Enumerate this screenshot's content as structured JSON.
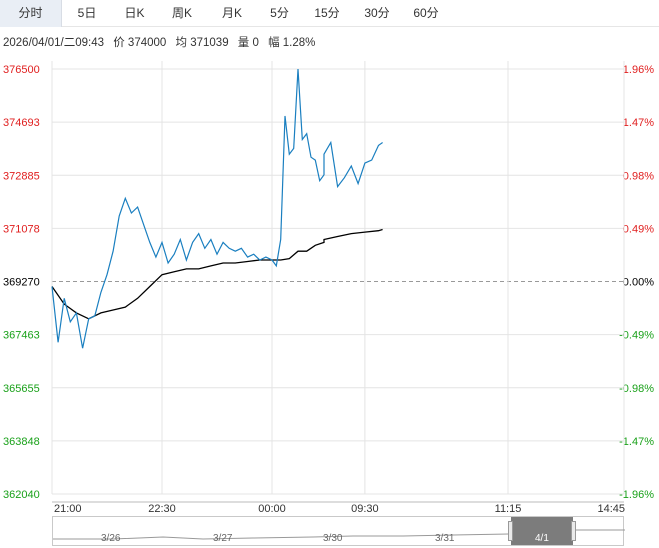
{
  "tabs": [
    {
      "label": "分时",
      "active": true
    },
    {
      "label": "5日",
      "active": false
    },
    {
      "label": "日K",
      "active": false
    },
    {
      "label": "周K",
      "active": false
    },
    {
      "label": "月K",
      "active": false
    },
    {
      "label": "5分",
      "active": false
    },
    {
      "label": "15分",
      "active": false
    },
    {
      "label": "30分",
      "active": false
    },
    {
      "label": "60分",
      "active": false
    }
  ],
  "info": {
    "datetime": "2026/04/01/二09:43",
    "price": "价 374000",
    "avg": "均 371039",
    "volume": "量 0",
    "change": "幅 1.28%"
  },
  "colors": {
    "up": "#e01e1e",
    "down": "#1aa11a",
    "price_line": "#1a7fc0",
    "avg_line": "#000000",
    "grid": "#e4e4e4",
    "base": "#999999"
  },
  "chart_data": {
    "type": "line",
    "y_left_ticks": [
      "376500",
      "374693",
      "372885",
      "371078",
      "369270",
      "367463",
      "365655",
      "363848",
      "362040"
    ],
    "y_right_ticks": [
      "1.96%",
      "1.47%",
      "0.98%",
      "0.49%",
      "0.00%",
      "-0.49%",
      "-0.98%",
      "-1.47%",
      "-1.96%"
    ],
    "x_ticks": [
      "21:00",
      "22:30",
      "00:00",
      "09:30",
      "11:15",
      "14:45"
    ],
    "ylim": [
      362040,
      376500
    ],
    "prev_close": 369270,
    "price_series": {
      "x": [
        "21:00",
        "21:05",
        "21:10",
        "21:15",
        "21:20",
        "21:25",
        "21:30",
        "21:35",
        "21:40",
        "21:45",
        "21:50",
        "21:55",
        "22:00",
        "22:05",
        "22:10",
        "22:15",
        "22:20",
        "22:25",
        "22:30",
        "22:35",
        "22:40",
        "22:45",
        "22:50",
        "22:55",
        "23:00",
        "23:05",
        "23:10",
        "23:15",
        "23:20",
        "23:25",
        "23:30",
        "23:35",
        "23:40",
        "23:45",
        "23:50",
        "23:55",
        "00:00",
        "00:05",
        "00:10",
        "00:15",
        "00:20",
        "00:25",
        "00:30",
        "00:35",
        "00:40",
        "00:45",
        "00:50",
        "00:55",
        "01:00",
        "09:00",
        "09:05",
        "09:10",
        "09:15",
        "09:20",
        "09:25",
        "09:30",
        "09:35",
        "09:40",
        "09:43"
      ],
      "y": [
        369100,
        367200,
        368700,
        367900,
        368200,
        367000,
        368000,
        368100,
        368900,
        369500,
        370300,
        371500,
        372100,
        371600,
        371800,
        371200,
        370600,
        370100,
        370600,
        369900,
        370200,
        370700,
        370000,
        370600,
        370900,
        370400,
        370700,
        370200,
        370600,
        370400,
        370300,
        370400,
        370100,
        370200,
        370000,
        370100,
        370000,
        369800,
        370700,
        374900,
        373600,
        373800,
        376500,
        374100,
        374300,
        373500,
        373400,
        372700,
        372900,
        373600,
        374000,
        372500,
        372800,
        373200,
        372600,
        373300,
        373400,
        373900,
        374000
      ]
    },
    "avg_series": {
      "x": [
        "21:00",
        "21:10",
        "21:20",
        "21:30",
        "21:40",
        "21:50",
        "22:00",
        "22:10",
        "22:20",
        "22:30",
        "22:40",
        "22:50",
        "23:00",
        "23:10",
        "23:20",
        "23:30",
        "23:40",
        "23:50",
        "00:00",
        "00:10",
        "00:20",
        "00:30",
        "00:40",
        "00:50",
        "01:00",
        "09:00",
        "09:10",
        "09:20",
        "09:30",
        "09:40",
        "09:43"
      ],
      "y": [
        369100,
        368500,
        368200,
        368000,
        368200,
        368300,
        368400,
        368700,
        369100,
        369500,
        369600,
        369700,
        369700,
        369800,
        369900,
        369900,
        369950,
        370000,
        370000,
        370000,
        370050,
        370300,
        370300,
        370500,
        370600,
        370700,
        370800,
        370900,
        370950,
        371000,
        371039
      ]
    }
  },
  "navigator": {
    "dates": [
      "3/26",
      "3/27",
      "3/30",
      "3/31",
      "4/1"
    ]
  }
}
